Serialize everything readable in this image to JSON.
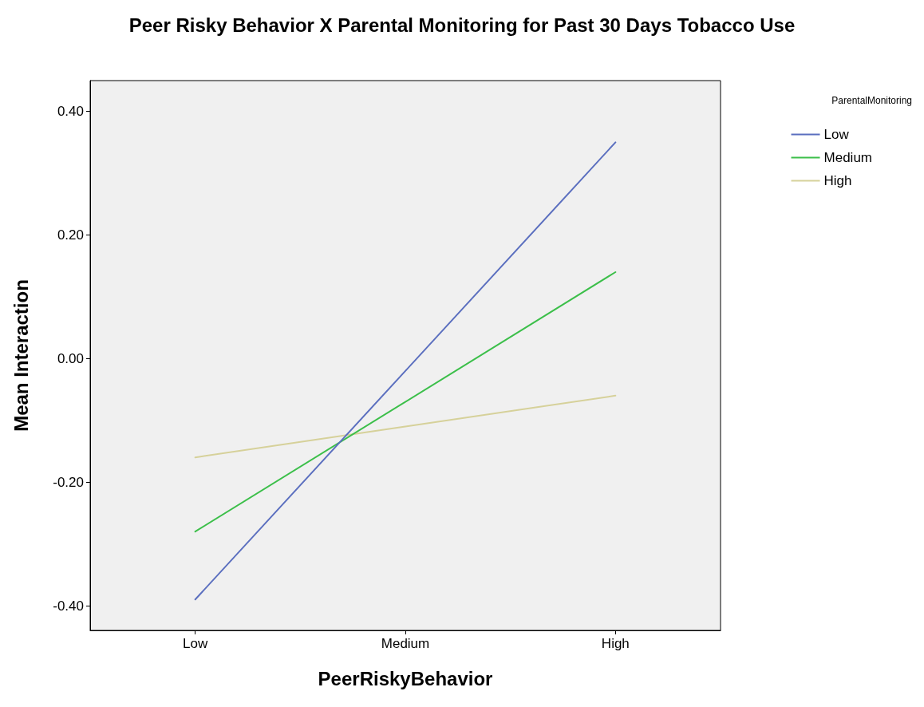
{
  "chart_data": {
    "type": "line",
    "title": "Peer Risky Behavior X Parental Monitoring for Past 30 Days Tobacco Use",
    "xlabel": "PeerRiskyBehavior",
    "ylabel": "Mean Interaction",
    "legend_title": "ParentalMonitoring",
    "categories": [
      "Low",
      "Medium",
      "High"
    ],
    "series": [
      {
        "name": "Low",
        "color": "#5b6fbf",
        "values": [
          -0.39,
          -0.02,
          0.35
        ]
      },
      {
        "name": "Medium",
        "color": "#3cbf4a",
        "values": [
          -0.28,
          -0.07,
          0.14
        ]
      },
      {
        "name": "High",
        "color": "#d6d19a",
        "values": [
          -0.16,
          -0.11,
          -0.06
        ]
      }
    ],
    "ylim": [
      -0.44,
      0.45
    ],
    "yticks": [
      {
        "value": -0.4,
        "label": "-0.40"
      },
      {
        "value": -0.2,
        "label": "-0.20"
      },
      {
        "value": 0,
        "label": "0.00"
      },
      {
        "value": 0.2,
        "label": "0.20"
      },
      {
        "value": 0.4,
        "label": "0.40"
      }
    ],
    "grid": false,
    "legend": "top right",
    "marker": "none",
    "line_style": "solid"
  }
}
